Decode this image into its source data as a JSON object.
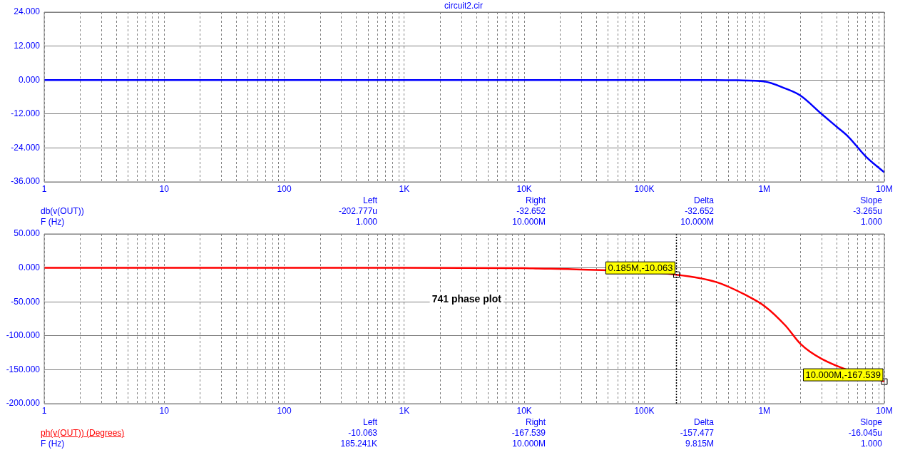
{
  "chart_data": [
    {
      "type": "line",
      "title": "circuit2.cir",
      "xlabel": "F (Hz)",
      "log": "x",
      "grid": true,
      "x": [
        1,
        10,
        100,
        1000,
        10000,
        100000,
        300000,
        600000,
        1000000,
        1500000,
        2000000,
        3000000,
        4000000,
        5000000,
        7000000,
        10000000
      ],
      "series": [
        {
          "name": "db(v(OUT))",
          "color": "#0000ff",
          "values": [
            0,
            0,
            0,
            0,
            0,
            0,
            0,
            -0.1,
            -0.5,
            -3,
            -5.5,
            -12,
            -16.5,
            -20,
            -27,
            -32.652
          ]
        }
      ],
      "xlim": [
        1,
        10000000
      ],
      "xticks": [
        {
          "value": 1,
          "label": "1"
        },
        {
          "value": 2,
          "label": null
        },
        {
          "value": 3,
          "label": null
        },
        {
          "value": 4,
          "label": null
        },
        {
          "value": 5,
          "label": null
        },
        {
          "value": 6,
          "label": null
        },
        {
          "value": 7,
          "label": null
        },
        {
          "value": 8,
          "label": null
        },
        {
          "value": 9,
          "label": null
        },
        {
          "value": 10,
          "label": "10"
        },
        {
          "value": 20,
          "label": null
        },
        {
          "value": 30,
          "label": null
        },
        {
          "value": 40,
          "label": null
        },
        {
          "value": 50,
          "label": null
        },
        {
          "value": 60,
          "label": null
        },
        {
          "value": 70,
          "label": null
        },
        {
          "value": 80,
          "label": null
        },
        {
          "value": 90,
          "label": null
        },
        {
          "value": 100,
          "label": "100"
        },
        {
          "value": 200,
          "label": null
        },
        {
          "value": 300,
          "label": null
        },
        {
          "value": 400,
          "label": null
        },
        {
          "value": 500,
          "label": null
        },
        {
          "value": 600,
          "label": null
        },
        {
          "value": 700,
          "label": null
        },
        {
          "value": 800,
          "label": null
        },
        {
          "value": 900,
          "label": null
        },
        {
          "value": 1000,
          "label": "1K"
        },
        {
          "value": 2000,
          "label": null
        },
        {
          "value": 3000,
          "label": null
        },
        {
          "value": 4000,
          "label": null
        },
        {
          "value": 5000,
          "label": null
        },
        {
          "value": 6000,
          "label": null
        },
        {
          "value": 7000,
          "label": null
        },
        {
          "value": 8000,
          "label": null
        },
        {
          "value": 9000,
          "label": null
        },
        {
          "value": 10000,
          "label": "10K"
        },
        {
          "value": 20000,
          "label": null
        },
        {
          "value": 30000,
          "label": null
        },
        {
          "value": 40000,
          "label": null
        },
        {
          "value": 50000,
          "label": null
        },
        {
          "value": 60000,
          "label": null
        },
        {
          "value": 70000,
          "label": null
        },
        {
          "value": 80000,
          "label": null
        },
        {
          "value": 90000,
          "label": null
        },
        {
          "value": 100000,
          "label": "100K"
        },
        {
          "value": 200000,
          "label": null
        },
        {
          "value": 300000,
          "label": null
        },
        {
          "value": 400000,
          "label": null
        },
        {
          "value": 500000,
          "label": null
        },
        {
          "value": 600000,
          "label": null
        },
        {
          "value": 700000,
          "label": null
        },
        {
          "value": 800000,
          "label": null
        },
        {
          "value": 900000,
          "label": null
        },
        {
          "value": 1000000,
          "label": "1M"
        },
        {
          "value": 2000000,
          "label": null
        },
        {
          "value": 3000000,
          "label": null
        },
        {
          "value": 4000000,
          "label": null
        },
        {
          "value": 5000000,
          "label": null
        },
        {
          "value": 6000000,
          "label": null
        },
        {
          "value": 7000000,
          "label": null
        },
        {
          "value": 8000000,
          "label": null
        },
        {
          "value": 9000000,
          "label": null
        },
        {
          "value": 10000000,
          "label": "10M"
        }
      ],
      "ylim": [
        -36,
        24
      ],
      "yticks": [
        {
          "value": -36,
          "label": "-36.000"
        },
        {
          "value": -24,
          "label": "-24.000"
        },
        {
          "value": -12,
          "label": "-12.000"
        },
        {
          "value": 0,
          "label": "0.000"
        },
        {
          "value": 12,
          "label": "12.000"
        },
        {
          "value": 24,
          "label": "24.000"
        }
      ],
      "annotations": [
        "Left",
        "Right",
        "Delta",
        "Slope",
        "-202.777u",
        "-32.652",
        "-32.652",
        "-3.265u",
        "1.000",
        "10.000M",
        "10.000M",
        "1.000"
      ]
    },
    {
      "type": "line",
      "subtitle": "741 phase plot",
      "xlabel": "F (Hz)",
      "log": "x",
      "grid": true,
      "x": [
        1,
        10,
        100,
        1000,
        10000,
        13000,
        25000,
        50000,
        100000,
        185241,
        400000,
        700000,
        1000000,
        1500000,
        2000000,
        3000000,
        5000000,
        10000000
      ],
      "series": [
        {
          "name": "ph(v(OUT)) (Degrees)",
          "color": "#ff0000",
          "values": [
            0,
            0,
            0,
            0,
            -0.5,
            -1,
            -2,
            null,
            null,
            -10.063,
            -21,
            -40,
            -56,
            -85,
            -112,
            -134,
            null,
            -167.539
          ]
        }
      ],
      "xlim": [
        1,
        10000000
      ],
      "xticks": [
        {
          "value": 1,
          "label": "1"
        },
        {
          "value": 2,
          "label": null
        },
        {
          "value": 3,
          "label": null
        },
        {
          "value": 4,
          "label": null
        },
        {
          "value": 5,
          "label": null
        },
        {
          "value": 6,
          "label": null
        },
        {
          "value": 7,
          "label": null
        },
        {
          "value": 8,
          "label": null
        },
        {
          "value": 9,
          "label": null
        },
        {
          "value": 10,
          "label": "10"
        },
        {
          "value": 20,
          "label": null
        },
        {
          "value": 30,
          "label": null
        },
        {
          "value": 40,
          "label": null
        },
        {
          "value": 50,
          "label": null
        },
        {
          "value": 60,
          "label": null
        },
        {
          "value": 70,
          "label": null
        },
        {
          "value": 80,
          "label": null
        },
        {
          "value": 90,
          "label": null
        },
        {
          "value": 100,
          "label": "100"
        },
        {
          "value": 200,
          "label": null
        },
        {
          "value": 300,
          "label": null
        },
        {
          "value": 400,
          "label": null
        },
        {
          "value": 500,
          "label": null
        },
        {
          "value": 600,
          "label": null
        },
        {
          "value": 700,
          "label": null
        },
        {
          "value": 800,
          "label": null
        },
        {
          "value": 900,
          "label": null
        },
        {
          "value": 1000,
          "label": "1K"
        },
        {
          "value": 2000,
          "label": null
        },
        {
          "value": 3000,
          "label": null
        },
        {
          "value": 4000,
          "label": null
        },
        {
          "value": 5000,
          "label": null
        },
        {
          "value": 6000,
          "label": null
        },
        {
          "value": 7000,
          "label": null
        },
        {
          "value": 8000,
          "label": null
        },
        {
          "value": 9000,
          "label": null
        },
        {
          "value": 10000,
          "label": "10K"
        },
        {
          "value": 20000,
          "label": null
        },
        {
          "value": 30000,
          "label": null
        },
        {
          "value": 40000,
          "label": null
        },
        {
          "value": 50000,
          "label": null
        },
        {
          "value": 60000,
          "label": null
        },
        {
          "value": 70000,
          "label": null
        },
        {
          "value": 80000,
          "label": null
        },
        {
          "value": 90000,
          "label": null
        },
        {
          "value": 100000,
          "label": "100K"
        },
        {
          "value": 200000,
          "label": null
        },
        {
          "value": 300000,
          "label": null
        },
        {
          "value": 400000,
          "label": null
        },
        {
          "value": 500000,
          "label": null
        },
        {
          "value": 600000,
          "label": null
        },
        {
          "value": 700000,
          "label": null
        },
        {
          "value": 800000,
          "label": null
        },
        {
          "value": 900000,
          "label": null
        },
        {
          "value": 1000000,
          "label": "1M"
        },
        {
          "value": 2000000,
          "label": null
        },
        {
          "value": 3000000,
          "label": null
        },
        {
          "value": 4000000,
          "label": null
        },
        {
          "value": 5000000,
          "label": null
        },
        {
          "value": 6000000,
          "label": null
        },
        {
          "value": 7000000,
          "label": null
        },
        {
          "value": 8000000,
          "label": null
        },
        {
          "value": 9000000,
          "label": null
        },
        {
          "value": 10000000,
          "label": "10M"
        }
      ],
      "ylim": [
        -200,
        50
      ],
      "yticks": [
        {
          "value": -200,
          "label": "-200.000"
        },
        {
          "value": -150,
          "label": "-150.000"
        },
        {
          "value": -100,
          "label": "-100.000"
        },
        {
          "value": -50,
          "label": "-50.000"
        },
        {
          "value": 0,
          "label": "0.000"
        },
        {
          "value": 50,
          "label": "50.000"
        }
      ],
      "ref_lines": [
        {
          "axis": "x",
          "value": 185241,
          "color": "#000000",
          "line_style": "dotted"
        }
      ],
      "annotations": [
        {
          "text": "0.185M,-10.063",
          "x": 185241,
          "y": -10.063
        },
        {
          "text": "10.000M,-167.539",
          "x": 10000000,
          "y": -167.539
        },
        "Left",
        "Right",
        "Delta",
        "Slope",
        "-10.063",
        "-167.539",
        "-157.477",
        "-16.045u",
        "185.241K",
        "10.000M",
        "9.815M",
        "1.000"
      ]
    }
  ]
}
